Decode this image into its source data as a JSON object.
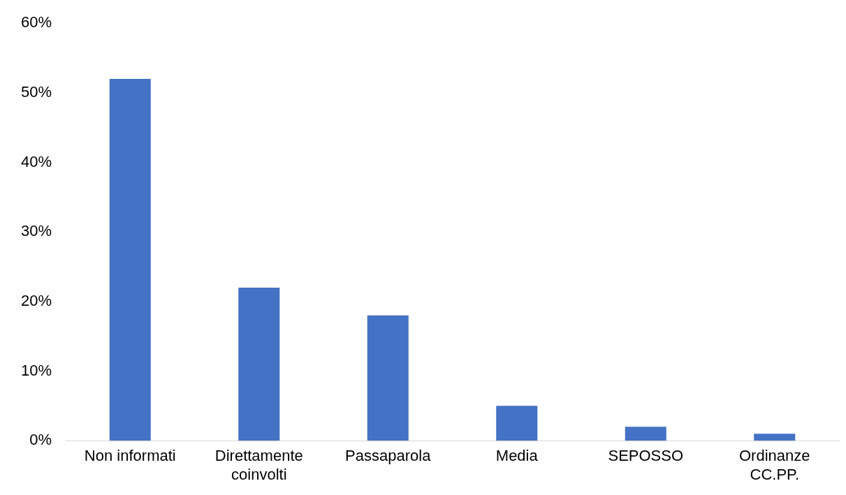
{
  "chart_data": {
    "type": "bar",
    "categories": [
      "Non informati",
      "Direttamente coinvolti",
      "Passaparola",
      "Media",
      "SEPOSSO",
      "Ordinanze CC.PP."
    ],
    "values": [
      52,
      22,
      18,
      5,
      2,
      1
    ],
    "color": "#4472c4",
    "ylim": [
      0,
      60
    ],
    "yticks": [
      {
        "value": 0,
        "label": "0%"
      },
      {
        "value": 10,
        "label": "10%"
      },
      {
        "value": 20,
        "label": "20%"
      },
      {
        "value": 30,
        "label": "30%"
      },
      {
        "value": 40,
        "label": "40%"
      },
      {
        "value": 50,
        "label": "50%"
      },
      {
        "value": 60,
        "label": "60%"
      }
    ],
    "grid": false,
    "legend": false
  }
}
